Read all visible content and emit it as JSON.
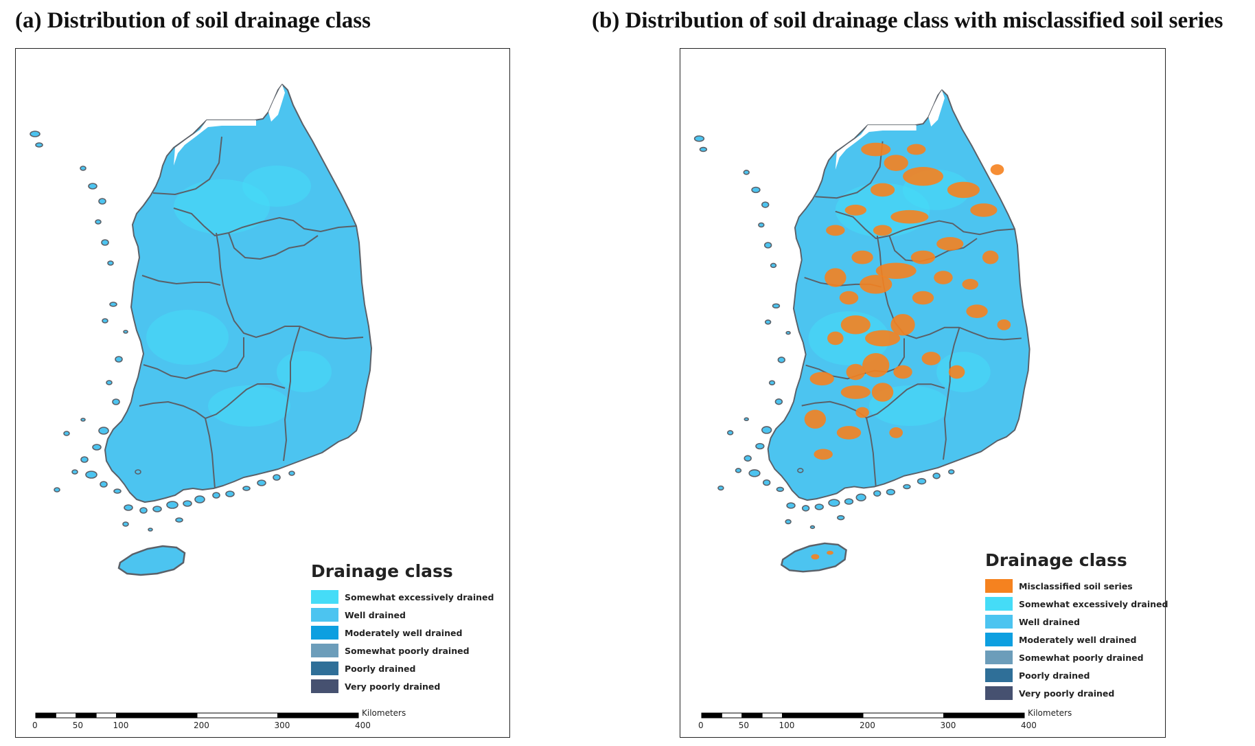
{
  "panel_a": {
    "title": "(a) Distribution of soil drainage class",
    "legend": {
      "title": "Drainage class",
      "items": [
        {
          "label": "Somewhat excessively drained",
          "color": "#45dcf7"
        },
        {
          "label": "Well drained",
          "color": "#4cc4f0"
        },
        {
          "label": "Moderately well drained",
          "color": "#0d9fe0"
        },
        {
          "label": "Somewhat poorly drained",
          "color": "#6c9dba"
        },
        {
          "label": "Poorly drained",
          "color": "#2f6f98"
        },
        {
          "label": "Very poorly drained",
          "color": "#465170"
        }
      ]
    },
    "scalebar": {
      "unit": "Kilometers",
      "ticks": [
        "0",
        "50",
        "100",
        "200",
        "300",
        "400"
      ]
    }
  },
  "panel_b": {
    "title": "(b) Distribution of soil drainage class with misclassified soil series",
    "legend": {
      "title": "Drainage class",
      "items": [
        {
          "label": "Misclassified soil series",
          "color": "#f5821f"
        },
        {
          "label": "Somewhat excessively drained",
          "color": "#45dcf7"
        },
        {
          "label": "Well drained",
          "color": "#4cc4f0"
        },
        {
          "label": "Moderately well drained",
          "color": "#0d9fe0"
        },
        {
          "label": "Somewhat poorly drained",
          "color": "#6c9dba"
        },
        {
          "label": "Poorly drained",
          "color": "#2f6f98"
        },
        {
          "label": "Very poorly drained",
          "color": "#465170"
        }
      ]
    },
    "scalebar": {
      "unit": "Kilometers",
      "ticks": [
        "0",
        "50",
        "100",
        "200",
        "300",
        "400"
      ]
    }
  },
  "colors": {
    "land": "#4cc4f0",
    "land_light": "#45dcf7",
    "boundary": "#5a6068",
    "misclassified": "#f5821f",
    "unmapped": "#ffffff"
  }
}
